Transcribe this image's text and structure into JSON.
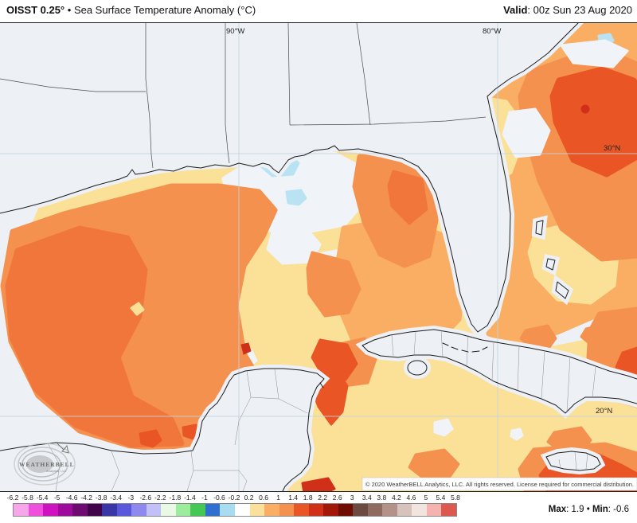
{
  "header": {
    "product": "OISST 0.25°",
    "bullet": "•",
    "title": "Sea Surface Temperature Anomaly (°C)",
    "valid_label": "Valid",
    "colon": ": ",
    "valid_value": "00z Sun 23 Aug 2020"
  },
  "map": {
    "labels": {
      "lon_90w": "90°W",
      "lon_80w": "80°W",
      "lat_30n": "30°N",
      "lat_20n": "20°N"
    },
    "logo": {
      "line1": "WEATHERBELL",
      "line2": "Analytics, LLC"
    },
    "copyright": "© 2020 WeatherBELL Analytics, LLC. All rights reserved. License required for commercial distribution."
  },
  "colorbar": {
    "units": "°C",
    "ticks": [
      "-6.2",
      "-5.8",
      "-5.4",
      "-5",
      "-4.6",
      "-4.2",
      "-3.8",
      "-3.4",
      "-3",
      "-2.6",
      "-2.2",
      "-1.8",
      "-1.4",
      "-1",
      "-0.6",
      "-0.2",
      "0.2",
      "0.6",
      "1",
      "1.4",
      "1.8",
      "2.2",
      "2.6",
      "3",
      "3.4",
      "3.8",
      "4.2",
      "4.6",
      "5",
      "5.4",
      "5.8"
    ],
    "colors": [
      "#f7a6e9",
      "#ef4fdc",
      "#ce12c0",
      "#9d0a9c",
      "#6e0b71",
      "#41044b",
      "#3a36a8",
      "#5b57dc",
      "#8e89ee",
      "#c2c0f8",
      "#e9f9e6",
      "#9cec9d",
      "#44c854",
      "#2e6fd0",
      "#a8dcf0",
      "#ffffff",
      "#fbe09b",
      "#f9ae63",
      "#f5914e",
      "#e95524",
      "#d03018",
      "#a21708",
      "#700d03",
      "#6b4a42",
      "#8f6b5f",
      "#b3928a",
      "#d8c3bc",
      "#f2e4de",
      "#f5b3b0",
      "#dd584e"
    ],
    "max_label": "Max",
    "colon": ": ",
    "max_value": "1.9",
    "dot": " • ",
    "min_label": "Min",
    "min_value": "-0.6"
  }
}
